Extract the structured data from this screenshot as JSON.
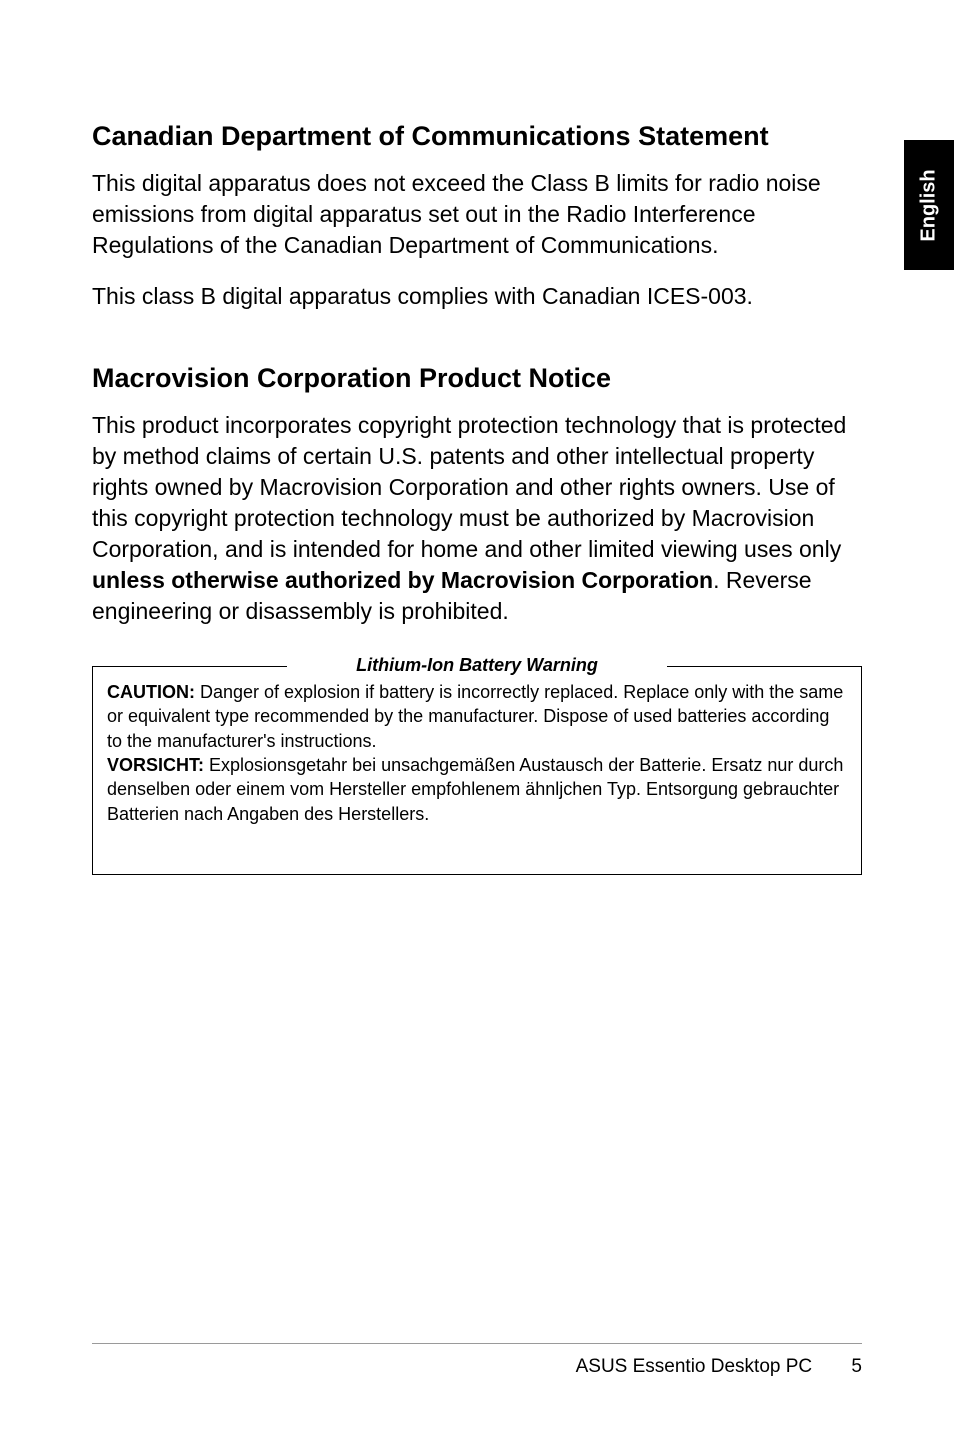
{
  "side_tab": {
    "label": "English",
    "bg": "#000000",
    "fg": "#ffffff"
  },
  "sections": {
    "canadian": {
      "heading": "Canadian Department of Communications Statement",
      "p1": "This digital apparatus does not exceed the Class B limits for radio noise emissions from digital apparatus set out in the Radio Interference Regulations of the Canadian Department of Communications.",
      "p2": "This class B digital apparatus complies with Canadian ICES-003."
    },
    "macrovision": {
      "heading": "Macrovision Corporation Product Notice",
      "p1_pre": "This product incorporates copyright protection technology that is protected by method claims of certain U.S. patents and other intellectual property rights owned by Macrovision Corporation and other rights owners. Use of this copyright protection technology must be authorized by Macrovision Corporation, and is intended for home and other limited viewing uses only ",
      "p1_bold": "unless otherwise authorized by Macrovision Corporation",
      "p1_post": ". Reverse engineering or disassembly is prohibited."
    }
  },
  "warning": {
    "title": "Lithium-Ion Battery Warning",
    "caution_label": "CAUTION:",
    "caution_text": " Danger of explosion if battery is incorrectly replaced. Replace only with the same or equivalent type recommended by the manufacturer. Dispose of used batteries according to the manufacturer's instructions.",
    "vorsicht_label": "VORSICHT:",
    "vorsicht_text": " Explosionsgetahr bei unsachgemäßen Austausch der Batterie. Ersatz nur durch denselben oder einem vom Hersteller empfohlenem ähnljchen Typ. Entsorgung gebrauchter Batterien nach Angaben des Herstellers."
  },
  "footer": {
    "product": "ASUS Essentio Desktop PC",
    "page_number": "5"
  },
  "colors": {
    "text": "#000000",
    "background": "#ffffff",
    "footer_rule": "#9a9a9a"
  },
  "typography": {
    "heading_fontsize_pt": 20,
    "body_fontsize_pt": 17,
    "warning_fontsize_pt": 13,
    "footer_fontsize_pt": 14
  }
}
